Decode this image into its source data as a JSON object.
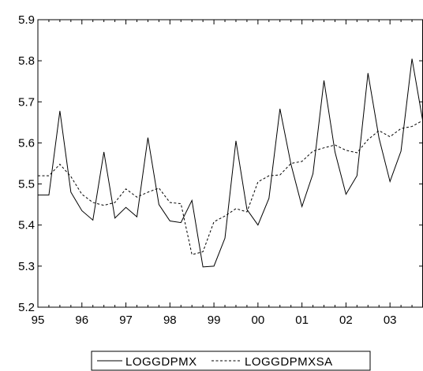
{
  "chart_data": {
    "type": "line",
    "x_start": "1995Q1",
    "x_tick_labels": [
      "95",
      "96",
      "97",
      "98",
      "99",
      "00",
      "01",
      "02",
      "03"
    ],
    "ylim": [
      5.2,
      5.9
    ],
    "y_ticks": [
      5.2,
      5.3,
      5.4,
      5.5,
      5.6,
      5.7,
      5.8,
      5.9
    ],
    "y_tick_labels": [
      "5.2",
      "5.3",
      "5.4",
      "5.5",
      "5.6",
      "5.7",
      "5.8",
      "5.9"
    ],
    "grid": false,
    "legend_position": "bottom",
    "series": [
      {
        "name": "LOGGDPMX",
        "style": "solid",
        "color": "#000000",
        "values": [
          5.473,
          5.473,
          5.678,
          5.48,
          5.435,
          5.412,
          5.578,
          5.417,
          5.443,
          5.42,
          5.613,
          5.45,
          5.41,
          5.406,
          5.46,
          5.298,
          5.3,
          5.368,
          5.605,
          5.438,
          5.4,
          5.465,
          5.683,
          5.548,
          5.445,
          5.525,
          5.752,
          5.578,
          5.475,
          5.52,
          5.77,
          5.612,
          5.506,
          5.58,
          5.805,
          5.65
        ]
      },
      {
        "name": "LOGGDPMXSA",
        "style": "dashed",
        "color": "#000000",
        "values": [
          5.52,
          5.52,
          5.548,
          5.518,
          5.475,
          5.455,
          5.448,
          5.455,
          5.488,
          5.468,
          5.48,
          5.49,
          5.455,
          5.452,
          5.328,
          5.335,
          5.408,
          5.422,
          5.44,
          5.432,
          5.505,
          5.52,
          5.522,
          5.55,
          5.555,
          5.58,
          5.588,
          5.595,
          5.582,
          5.576,
          5.608,
          5.63,
          5.615,
          5.635,
          5.64,
          5.655
        ]
      }
    ]
  }
}
